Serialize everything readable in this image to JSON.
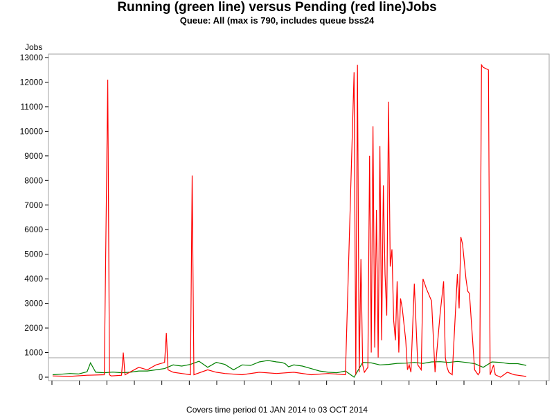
{
  "chart_data": {
    "type": "line",
    "title": "Running (green line) versus Pending (red line)Jobs",
    "subtitle": "Queue: All (max is 790, includes queue bss24",
    "footnote": "Covers time period 01 JAN 2014 to 03 OCT 2014",
    "ylabel": "Jobs",
    "ylim": [
      0,
      13000
    ],
    "yticks": [
      0,
      1000,
      2000,
      3000,
      4000,
      5000,
      6000,
      7000,
      8000,
      9000,
      10000,
      11000,
      12000,
      13000
    ],
    "xlim": [
      0,
      275
    ],
    "x_tick_count": 19,
    "reference_line": {
      "value": 790
    },
    "colors": {
      "running": "#008000",
      "pending": "#ff0000",
      "reference": "#a0a0a0",
      "frame": "#a0a0a0"
    },
    "series": [
      {
        "key": "running",
        "x": [
          0,
          5,
          10,
          15,
          20,
          22,
          25,
          30,
          35,
          40,
          45,
          50,
          55,
          60,
          65,
          70,
          75,
          80,
          85,
          90,
          95,
          100,
          105,
          110,
          115,
          120,
          125,
          130,
          133,
          135,
          137,
          140,
          145,
          150,
          155,
          160,
          165,
          170,
          175,
          180,
          185,
          190,
          195,
          200,
          205,
          210,
          215,
          220,
          225,
          230,
          235,
          240,
          245,
          250,
          255,
          260,
          265,
          270,
          275
        ],
        "values": [
          100,
          120,
          150,
          130,
          220,
          580,
          200,
          180,
          210,
          180,
          200,
          250,
          250,
          300,
          350,
          500,
          450,
          520,
          650,
          400,
          600,
          520,
          300,
          500,
          480,
          620,
          680,
          620,
          600,
          550,
          420,
          500,
          450,
          350,
          250,
          200,
          180,
          250,
          0,
          600,
          580,
          500,
          520,
          560,
          570,
          600,
          560,
          620,
          630,
          600,
          640,
          600,
          550,
          400,
          620,
          600,
          550,
          550,
          480
        ]
      },
      {
        "key": "pending",
        "x": [
          0,
          10,
          20,
          30,
          32,
          33,
          34,
          40,
          41,
          42,
          50,
          55,
          60,
          65,
          66,
          67,
          70,
          75,
          80,
          81,
          82,
          90,
          95,
          100,
          110,
          120,
          130,
          140,
          150,
          160,
          170,
          175,
          176,
          177,
          178,
          179,
          180,
          181,
          182,
          183,
          184,
          185,
          186,
          187,
          188,
          189,
          190,
          191,
          192,
          193,
          194,
          195,
          196,
          197,
          198,
          199,
          200,
          201,
          202,
          203,
          205,
          206,
          207,
          208,
          210,
          212,
          214,
          215,
          216,
          217,
          220,
          222,
          225,
          227,
          228,
          229,
          230,
          232,
          235,
          236,
          237,
          238,
          240,
          241,
          242,
          245,
          246,
          247,
          248,
          249,
          250,
          253,
          254,
          255,
          256,
          257,
          260,
          262,
          264,
          266,
          267,
          268,
          270,
          272,
          274,
          275
        ],
        "values": [
          50,
          30,
          80,
          100,
          12100,
          100,
          50,
          80,
          1000,
          100,
          400,
          300,
          500,
          600,
          1800,
          300,
          200,
          150,
          100,
          8200,
          100,
          300,
          200,
          150,
          100,
          200,
          150,
          200,
          100,
          150,
          100,
          12400,
          100,
          12700,
          200,
          4800,
          500,
          200,
          300,
          400,
          9000,
          1000,
          10200,
          1200,
          6800,
          800,
          9400,
          1500,
          7800,
          4200,
          2500,
          11200,
          4500,
          5200,
          2300,
          1500,
          3900,
          1000,
          3200,
          2800,
          1500,
          300,
          500,
          200,
          3800,
          500,
          300,
          4000,
          3800,
          3600,
          3100,
          200,
          2600,
          3900,
          800,
          400,
          200,
          100,
          4200,
          2800,
          5700,
          5400,
          4000,
          3500,
          3400,
          300,
          200,
          100,
          200,
          12700,
          12600,
          12500,
          100,
          300,
          500,
          100,
          0,
          100,
          200,
          150,
          120,
          100,
          80,
          60,
          40,
          30
        ]
      }
    ]
  }
}
